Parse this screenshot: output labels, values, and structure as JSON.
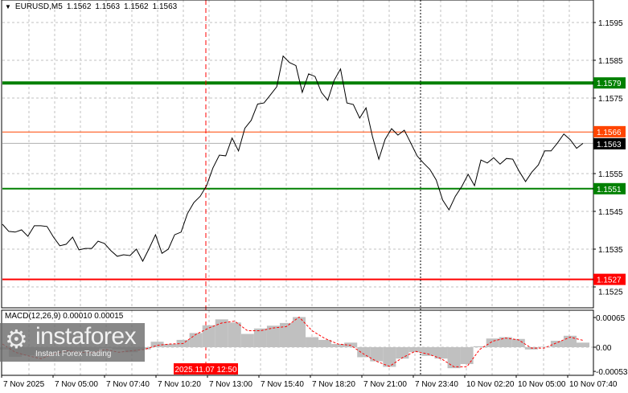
{
  "header": {
    "symbol": "EURUSD,M5",
    "ohlc": [
      "1.1562",
      "1.1563",
      "1.1562",
      "1.1563"
    ]
  },
  "macd_header": {
    "label": "MACD(12,26,9)",
    "main_value": "0.00010",
    "signal_value": "0.00015"
  },
  "logo": {
    "name": "instaforex",
    "tagline": "Instant Forex Trading"
  },
  "colors": {
    "price_line": "#000000",
    "grid": "#c0c0c0",
    "support_resistance": "#008000",
    "stop_level": "#ff0000",
    "previous_close": "#ff4500",
    "current_badge": "#000000",
    "macd_histogram": "#c0c0c0",
    "macd_signal": "#ff0000"
  },
  "chart_data": [
    {
      "type": "line",
      "title": "EURUSD,M5",
      "ylim": [
        1.15175,
        1.16005
      ],
      "y_ticks": [
        "1.1595",
        "1.1585",
        "1.1575",
        "1.1555",
        "1.1545",
        "1.1535",
        "1.1525"
      ],
      "x_ticks": [
        "7 Nov 2025",
        "7 Nov 05:00",
        "7 Nov 07:40",
        "7 Nov 10:20",
        "7 Nov 13:00",
        "7 Nov 15:40",
        "7 Nov 18:20",
        "7 Nov 21:00",
        "7 Nov 23:40",
        "10 Nov 02:20",
        "10 Nov 05:00",
        "10 Nov 07:40"
      ],
      "grid": true,
      "levels": [
        {
          "price": 1.1579,
          "label": "1.1579",
          "color": "#008000",
          "weight": "thick"
        },
        {
          "price": 1.1551,
          "label": "1.1551",
          "color": "#008000",
          "weight": "normal"
        },
        {
          "price": 1.1527,
          "label": "1.1527",
          "color": "#ff0000",
          "weight": "normal"
        },
        {
          "price": 1.1566,
          "label": "1.1566",
          "color": "#ff4500",
          "weight": "thin"
        }
      ],
      "current_price": {
        "price": 1.1563,
        "label": "1.1563"
      },
      "vertical_markers": [
        {
          "label": "2025.11.07 12:50",
          "color": "#ff0000",
          "style": "dashed"
        },
        {
          "label": "",
          "color": "#000000",
          "style": "dotted"
        }
      ],
      "close": [
        1.15416,
        1.15397,
        1.15395,
        1.15401,
        1.15384,
        1.15412,
        1.15412,
        1.1541,
        1.15382,
        1.15359,
        1.15363,
        1.15382,
        1.15348,
        1.15352,
        1.15352,
        1.15371,
        1.15365,
        1.15346,
        1.15331,
        1.15335,
        1.15333,
        1.1535,
        1.15318,
        1.15352,
        1.15388,
        1.15339,
        1.1535,
        1.15388,
        1.15395,
        1.15444,
        1.15473,
        1.1549,
        1.15518,
        1.15565,
        1.15599,
        1.15597,
        1.15644,
        1.1561,
        1.1567,
        1.15691,
        1.15734,
        1.15737,
        1.15758,
        1.1578,
        1.15861,
        1.15844,
        1.15836,
        1.15765,
        1.15814,
        1.15807,
        1.15765,
        1.15744,
        1.15797,
        1.15827,
        1.15737,
        1.15733,
        1.15697,
        1.15724,
        1.15648,
        1.15588,
        1.15641,
        1.15669,
        1.15652,
        1.15665,
        1.15631,
        1.15597,
        1.15578,
        1.15561,
        1.15533,
        1.1548,
        1.15454,
        1.1549,
        1.15516,
        1.15548,
        1.15518,
        1.15586,
        1.15578,
        1.15592,
        1.15575,
        1.1559,
        1.15588,
        1.15556,
        1.15529,
        1.15554,
        1.15573,
        1.1561,
        1.1561,
        1.15631,
        1.15655,
        1.1564,
        1.15617,
        1.1563
      ]
    },
    {
      "type": "bar",
      "title": "MACD(12,26,9)",
      "ylim": [
        -0.00065,
        0.00085
      ],
      "y_ticks": [
        "0.00065",
        "0.00",
        "-0.00053"
      ],
      "y_tick_values": [
        0.00065,
        0,
        -0.00053
      ],
      "series": [
        {
          "name": "MACD",
          "values": [
            -5e-05,
            -0.00021,
            -0.00018,
            -0.00012,
            -0.00011,
            -0.00014,
            -8e-05,
            -8e-05,
            -2e-05,
            -5e-05,
            -0.00011,
            -5e-05,
            0.00012,
            7e-05,
            0.00016,
            0.00031,
            0.00048,
            0.00061,
            0.00054,
            0.00029,
            0.00041,
            0.00047,
            0.00053,
            0.00066,
            0.00022,
            0.00016,
            7e-05,
            0.0001,
            -0.00022,
            -0.00031,
            -0.00043,
            -0.00025,
            -0.00011,
            -0.00019,
            -0.00025,
            -0.00046,
            -0.00037,
            2e-05,
            0.00019,
            0.00022,
            0.00018,
            -5e-05,
            1e-05,
            0.00014,
            0.00025,
            0.0001
          ]
        },
        {
          "name": "Signal",
          "values": [
            7e-05,
            -0.00011,
            -0.00019,
            -0.00025,
            -0.00014,
            -8e-05,
            -0.00011,
            -0.00012,
            -5e-05,
            -0.00011,
            -8e-05,
            -5e-05,
            4e-05,
            7e-05,
            8e-05,
            0.00028,
            0.00042,
            0.00053,
            0.00057,
            0.00036,
            0.00036,
            0.00042,
            0.00045,
            0.00066,
            0.00036,
            0.00019,
            7e-05,
            4e-05,
            -0.00015,
            -0.00031,
            -0.00042,
            -0.00023,
            -9e-05,
            -0.00015,
            -0.00025,
            -0.00043,
            -0.00043,
            -5e-05,
            0.00013,
            0.0002,
            0.00016,
            -2e-05,
            -2e-05,
            0.0001,
            0.00022,
            0.00015
          ]
        }
      ]
    }
  ]
}
